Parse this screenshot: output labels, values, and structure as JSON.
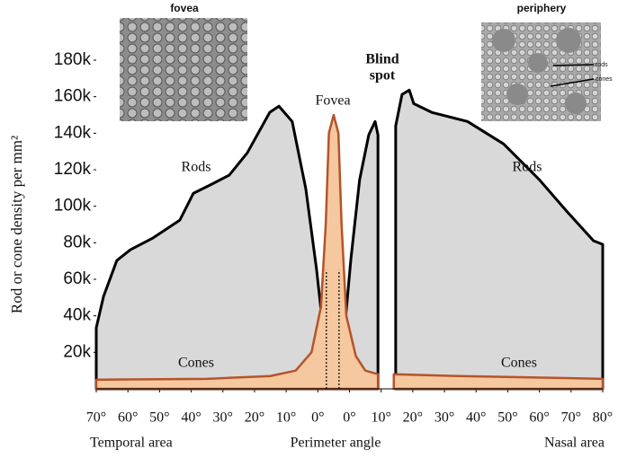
{
  "chart_data": {
    "type": "area",
    "y_label": "Rod or cone density per mm²",
    "x_label": "Perimeter angle",
    "x_label_left": "Temporal area",
    "x_label_right": "Nasal area",
    "xlim": [
      -75,
      85
    ],
    "ylim": [
      0,
      180000
    ],
    "xticks": [
      {
        "value": -75,
        "label": "70°"
      },
      {
        "value": -65,
        "label": "60°"
      },
      {
        "value": -55,
        "label": "50°"
      },
      {
        "value": -45,
        "label": "40°"
      },
      {
        "value": -35,
        "label": "30°"
      },
      {
        "value": -25,
        "label": "20°"
      },
      {
        "value": -15,
        "label": "10°"
      },
      {
        "value": -5,
        "label": "0°"
      },
      {
        "value": 5,
        "label": "0°"
      },
      {
        "value": 15,
        "label": "10°"
      },
      {
        "value": 25,
        "label": "20°"
      },
      {
        "value": 35,
        "label": "30°"
      },
      {
        "value": 45,
        "label": "40°"
      },
      {
        "value": 55,
        "label": "50°"
      },
      {
        "value": 65,
        "label": "60°"
      },
      {
        "value": 75,
        "label": "70°"
      },
      {
        "value": 85,
        "label": "80°"
      }
    ],
    "yticks": [
      {
        "value": 20000,
        "label": "20k"
      },
      {
        "value": 40000,
        "label": "40k"
      },
      {
        "value": 60000,
        "label": "60k"
      },
      {
        "value": 80000,
        "label": "80k"
      },
      {
        "value": 100000,
        "label": "100k"
      },
      {
        "value": 120000,
        "label": "120k"
      },
      {
        "value": 140000,
        "label": "140k"
      },
      {
        "value": 160000,
        "label": "160k"
      },
      {
        "value": 180000,
        "label": "180k"
      }
    ],
    "reference_lines": [
      -2.3,
      1.7
    ],
    "series": [
      {
        "name": "Rods",
        "color": "#d9d9d9",
        "line_color": "#000000",
        "x": [
          -75,
          -72.7,
          -68.5,
          -64.2,
          -57.1,
          -48.6,
          -44.3,
          -38.6,
          -33,
          -27.3,
          -20.2,
          -17.3,
          -13.1,
          -8.8,
          -5.4,
          -2.6,
          -0.9,
          0.3,
          2.6,
          5.4,
          8.2,
          11.1,
          13.1,
          14,
          16.5,
          19.6,
          21.6,
          23.9,
          25.3,
          31,
          42.3,
          53.7,
          65,
          73.6,
          82.1,
          85
        ],
        "values": [
          33400,
          50600,
          70300,
          76200,
          82600,
          92400,
          107100,
          112000,
          117000,
          129200,
          151400,
          154800,
          146400,
          109600,
          65400,
          21100,
          8800,
          3900,
          16200,
          70300,
          114500,
          139100,
          146400,
          139000,
          null,
          144000,
          161200,
          163600,
          156200,
          151400,
          146400,
          134100,
          114500,
          97300,
          81100,
          79100
        ]
      },
      {
        "name": "Cones",
        "color": "#f6c89f",
        "line_color": "#b5532a",
        "x": [
          -75,
          -40,
          -20,
          -12,
          -7,
          -4,
          -2.5,
          -1.5,
          0,
          1.5,
          2.5,
          4,
          7,
          10,
          14,
          16.5,
          19,
          40,
          85
        ],
        "values": [
          5000,
          5500,
          7000,
          10000,
          20000,
          45000,
          90000,
          140000,
          150000,
          140000,
          90000,
          40000,
          18000,
          10000,
          8000,
          null,
          8000,
          7000,
          5500
        ]
      }
    ],
    "annotations": {
      "rods_right": "Rods",
      "cones_right": "Cones",
      "fovea": "Fovea",
      "blind": "Blind",
      "spot": "spot"
    },
    "insets": {
      "fovea": "fovea",
      "periphery": "periphery",
      "rods": "rods",
      "cones": "cones"
    }
  }
}
